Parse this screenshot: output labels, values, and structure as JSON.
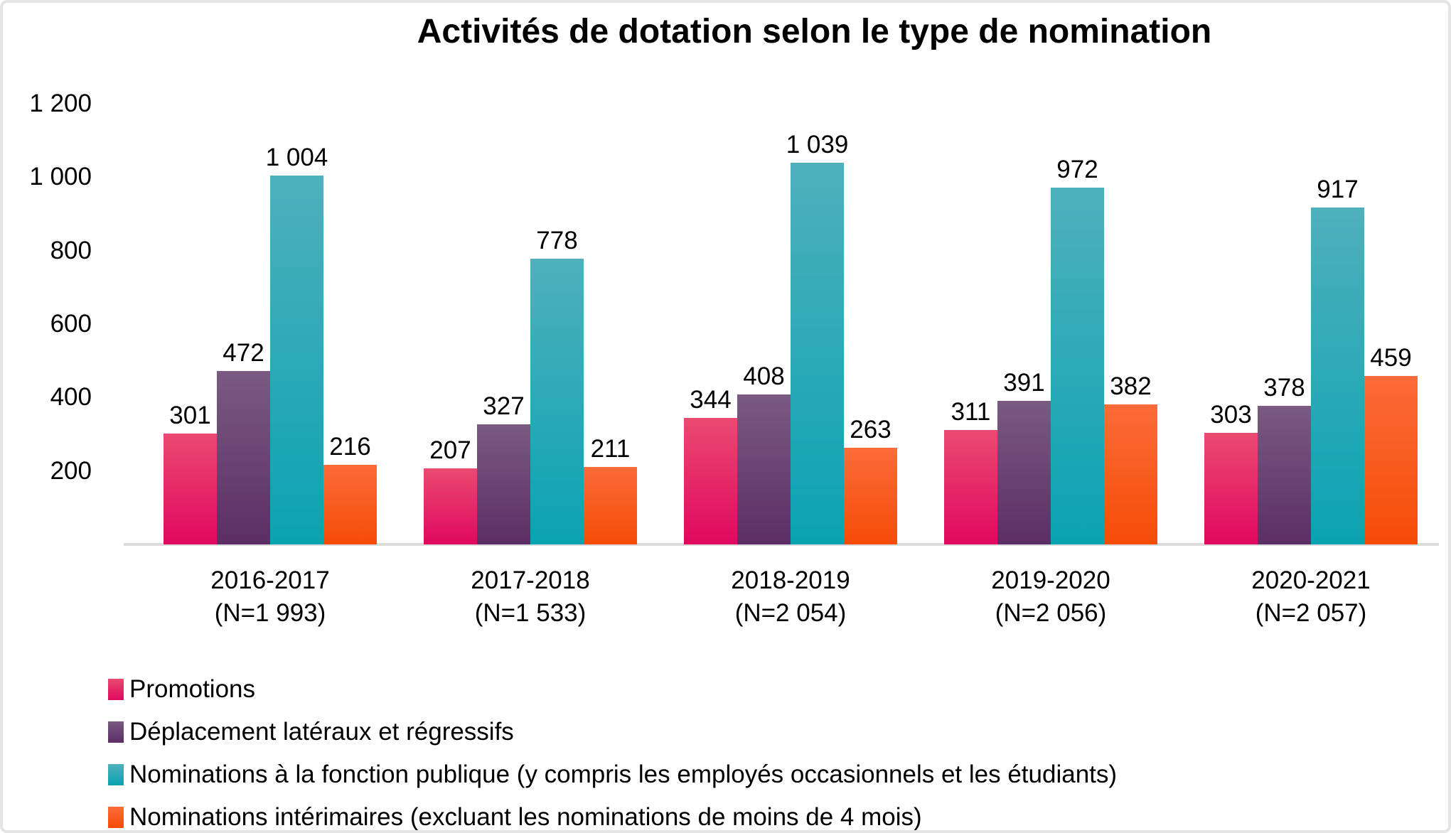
{
  "title": "Activités de dotation selon le type de nomination",
  "chart_data": {
    "type": "bar",
    "title": "Activités de dotation selon le type de nomination",
    "grid": false,
    "legend_position": "bottom-left",
    "categories": [
      {
        "label": "2016-2017",
        "sublabel": "(N=1 993)"
      },
      {
        "label": "2017-2018",
        "sublabel": "(N=1 533)"
      },
      {
        "label": "2018-2019",
        "sublabel": "(N=2 054)"
      },
      {
        "label": "2019-2020",
        "sublabel": "(N=2 056)"
      },
      {
        "label": "2020-2021",
        "sublabel": "(N=2 057)"
      }
    ],
    "series": [
      {
        "name": "Promotions",
        "color_top": "#ea4a71",
        "color_bottom": "#e0085f",
        "values": [
          301,
          207,
          344,
          311,
          303
        ],
        "display_values": [
          "301",
          "207",
          "344",
          "311",
          "303"
        ]
      },
      {
        "name": "Déplacement latéraux et régressifs",
        "color_top": "#7a5a82",
        "color_bottom": "#5c2e65",
        "values": [
          472,
          327,
          408,
          391,
          378
        ],
        "display_values": [
          "472",
          "327",
          "408",
          "391",
          "378"
        ]
      },
      {
        "name": "Nominations à la fonction publique (y compris les employés occasionnels et les étudiants)",
        "color_top": "#4fb0bc",
        "color_bottom": "#0aa3b2",
        "values": [
          1004,
          778,
          1039,
          972,
          917
        ],
        "display_values": [
          "1 004",
          "778",
          "1 039",
          "972",
          "917"
        ]
      },
      {
        "name": "Nominations intérimaires (excluant les nominations de moins de 4 mois)",
        "color_top": "#fb6b39",
        "color_bottom": "#f54c06",
        "values": [
          216,
          211,
          263,
          382,
          459
        ],
        "display_values": [
          "216",
          "211",
          "263",
          "382",
          "459"
        ]
      }
    ],
    "y_axis": {
      "min": 0,
      "max": 1200,
      "ticks": [
        {
          "label": "200",
          "value": 200
        },
        {
          "label": "400",
          "value": 400
        },
        {
          "label": "600",
          "value": 600
        },
        {
          "label": "800",
          "value": 800
        },
        {
          "label": "1 000",
          "value": 1000
        },
        {
          "label": "1 200",
          "value": 1200
        }
      ]
    },
    "axis_line_color": "#dcdcdc"
  }
}
